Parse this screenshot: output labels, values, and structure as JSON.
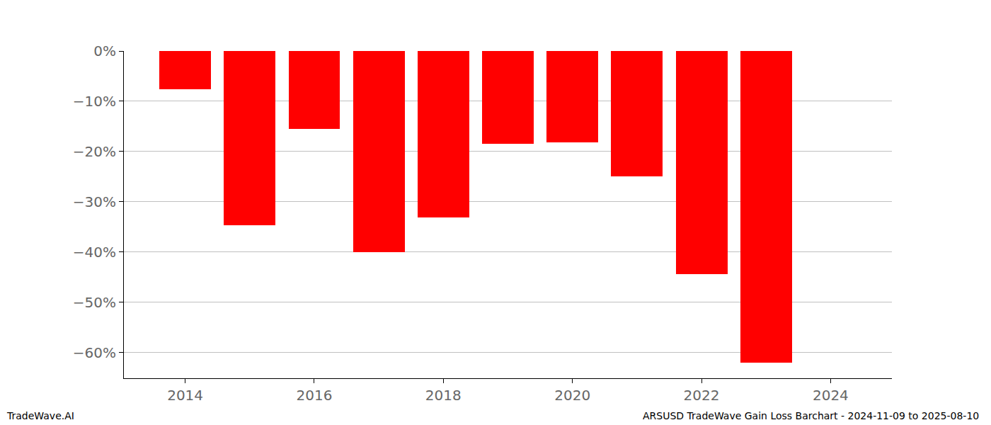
{
  "chart_data": {
    "type": "bar",
    "title": "ARSUSD TradeWave Gain Loss Barchart - 2024-11-09 to 2025-08-10",
    "annotations": [
      "TradeWave.AI"
    ],
    "x": [
      2014,
      2015,
      2016,
      2017,
      2018,
      2019,
      2020,
      2021,
      2022,
      2023
    ],
    "values": [
      -7.6,
      -34.6,
      -15.5,
      -40.0,
      -33.1,
      -18.5,
      -18.2,
      -24.9,
      -44.4,
      -62.0
    ],
    "color": "#ff0000",
    "xlim": [
      2013.05,
      2024.95
    ],
    "xticks": [
      2014,
      2016,
      2018,
      2020,
      2022,
      2024
    ],
    "ylim": [
      -65.1,
      0
    ],
    "yticks": [
      {
        "value": 0,
        "label": "0%"
      },
      {
        "value": -10,
        "label": "−10%"
      },
      {
        "value": -20,
        "label": "−20%"
      },
      {
        "value": -30,
        "label": "−30%"
      },
      {
        "value": -40,
        "label": "−40%"
      },
      {
        "value": -50,
        "label": "−50%"
      },
      {
        "value": -60,
        "label": "−60%"
      }
    ],
    "grid": true
  }
}
